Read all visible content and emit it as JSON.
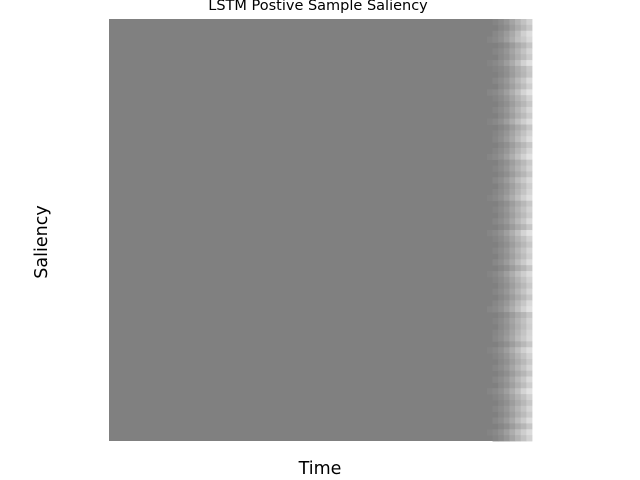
{
  "chart_data": {
    "type": "heatmap",
    "title": "LSTM Postive Sample Saliency",
    "xlabel": "Time",
    "ylabel": "Saliency",
    "grid": false,
    "axis_ticks": false,
    "colormap": "grayscale (mid gray = baseline, lighter = higher saliency)",
    "baseline_color": "#808080",
    "highlight_color": "#e6e6e6",
    "n_rows": 72,
    "n_cols": 75,
    "value_range": [
      0,
      1
    ],
    "description_of_values": "Saliency is near zero across nearly all time steps; light cells appear only in the final ~8 time steps, strongest at the last columns.",
    "columns": [
      {
        "col": 67,
        "row_values": [
          0.0,
          0.0,
          0.0,
          0.05,
          0.0,
          0.0,
          0.0,
          0.04,
          0.0,
          0.0,
          0.0,
          0.0,
          0.06,
          0.0,
          0.0,
          0.0,
          0.0,
          0.04,
          0.0,
          0.0,
          0.0,
          0.0,
          0.0,
          0.05,
          0.0,
          0.0,
          0.0,
          0.0,
          0.0,
          0.0,
          0.04,
          0.0,
          0.0,
          0.0,
          0.0,
          0.0,
          0.05,
          0.0,
          0.0,
          0.0,
          0.0,
          0.0,
          0.0,
          0.04,
          0.0,
          0.0,
          0.0,
          0.0,
          0.0,
          0.06,
          0.0,
          0.0,
          0.0,
          0.0,
          0.0,
          0.0,
          0.04,
          0.0,
          0.0,
          0.0,
          0.0,
          0.0,
          0.0,
          0.05,
          0.0,
          0.0,
          0.0,
          0.0,
          0.0,
          0.0,
          0.04,
          0.0
        ]
      },
      {
        "col": 68,
        "row_values": [
          0.05,
          0.0,
          0.08,
          0.1,
          0.0,
          0.06,
          0.0,
          0.09,
          0.04,
          0.0,
          0.07,
          0.0,
          0.1,
          0.05,
          0.0,
          0.06,
          0.0,
          0.09,
          0.0,
          0.05,
          0.07,
          0.0,
          0.06,
          0.1,
          0.0,
          0.05,
          0.0,
          0.08,
          0.0,
          0.06,
          0.09,
          0.0,
          0.05,
          0.0,
          0.07,
          0.0,
          0.1,
          0.05,
          0.0,
          0.06,
          0.0,
          0.08,
          0.0,
          0.09,
          0.05,
          0.0,
          0.06,
          0.0,
          0.07,
          0.1,
          0.0,
          0.05,
          0.0,
          0.06,
          0.08,
          0.0,
          0.09,
          0.05,
          0.0,
          0.06,
          0.0,
          0.07,
          0.0,
          0.1,
          0.05,
          0.0,
          0.06,
          0.0,
          0.08,
          0.0,
          0.09,
          0.05
        ]
      },
      {
        "col": 69,
        "row_values": [
          0.12,
          0.08,
          0.15,
          0.18,
          0.06,
          0.12,
          0.1,
          0.16,
          0.09,
          0.07,
          0.14,
          0.1,
          0.18,
          0.12,
          0.08,
          0.13,
          0.09,
          0.17,
          0.07,
          0.12,
          0.15,
          0.08,
          0.13,
          0.18,
          0.09,
          0.12,
          0.07,
          0.15,
          0.1,
          0.13,
          0.17,
          0.08,
          0.12,
          0.09,
          0.14,
          0.07,
          0.18,
          0.12,
          0.08,
          0.13,
          0.1,
          0.15,
          0.07,
          0.17,
          0.12,
          0.09,
          0.13,
          0.08,
          0.14,
          0.18,
          0.07,
          0.12,
          0.1,
          0.13,
          0.15,
          0.08,
          0.17,
          0.12,
          0.09,
          0.13,
          0.07,
          0.14,
          0.1,
          0.18,
          0.12,
          0.08,
          0.13,
          0.09,
          0.15,
          0.07,
          0.17,
          0.12
        ]
      },
      {
        "col": 70,
        "row_values": [
          0.22,
          0.15,
          0.26,
          0.3,
          0.14,
          0.22,
          0.18,
          0.28,
          0.17,
          0.15,
          0.24,
          0.19,
          0.3,
          0.22,
          0.16,
          0.23,
          0.18,
          0.29,
          0.15,
          0.22,
          0.26,
          0.16,
          0.23,
          0.3,
          0.17,
          0.22,
          0.15,
          0.26,
          0.19,
          0.23,
          0.29,
          0.16,
          0.22,
          0.18,
          0.24,
          0.15,
          0.3,
          0.22,
          0.16,
          0.23,
          0.19,
          0.26,
          0.15,
          0.29,
          0.22,
          0.17,
          0.23,
          0.16,
          0.24,
          0.3,
          0.15,
          0.22,
          0.19,
          0.23,
          0.26,
          0.16,
          0.29,
          0.22,
          0.17,
          0.23,
          0.15,
          0.24,
          0.19,
          0.3,
          0.22,
          0.16,
          0.23,
          0.18,
          0.26,
          0.15,
          0.29,
          0.22
        ]
      },
      {
        "col": 71,
        "row_values": [
          0.35,
          0.28,
          0.4,
          0.45,
          0.26,
          0.35,
          0.3,
          0.42,
          0.29,
          0.27,
          0.38,
          0.31,
          0.45,
          0.35,
          0.28,
          0.36,
          0.3,
          0.44,
          0.27,
          0.35,
          0.4,
          0.28,
          0.36,
          0.45,
          0.29,
          0.35,
          0.27,
          0.4,
          0.31,
          0.36,
          0.44,
          0.28,
          0.35,
          0.3,
          0.38,
          0.27,
          0.45,
          0.35,
          0.28,
          0.36,
          0.31,
          0.4,
          0.27,
          0.44,
          0.35,
          0.29,
          0.36,
          0.28,
          0.38,
          0.45,
          0.27,
          0.35,
          0.31,
          0.36,
          0.4,
          0.28,
          0.44,
          0.35,
          0.29,
          0.36,
          0.27,
          0.38,
          0.31,
          0.45,
          0.35,
          0.28,
          0.36,
          0.3,
          0.4,
          0.27,
          0.44,
          0.35
        ]
      },
      {
        "col": 72,
        "row_values": [
          0.5,
          0.42,
          0.58,
          0.62,
          0.4,
          0.5,
          0.45,
          0.6,
          0.43,
          0.41,
          0.55,
          0.46,
          0.62,
          0.5,
          0.42,
          0.52,
          0.45,
          0.61,
          0.41,
          0.5,
          0.58,
          0.42,
          0.52,
          0.62,
          0.43,
          0.5,
          0.41,
          0.58,
          0.46,
          0.52,
          0.61,
          0.42,
          0.5,
          0.45,
          0.55,
          0.41,
          0.62,
          0.5,
          0.42,
          0.52,
          0.46,
          0.58,
          0.41,
          0.61,
          0.5,
          0.43,
          0.52,
          0.42,
          0.55,
          0.62,
          0.41,
          0.5,
          0.46,
          0.52,
          0.58,
          0.42,
          0.61,
          0.5,
          0.43,
          0.52,
          0.41,
          0.55,
          0.46,
          0.62,
          0.5,
          0.42,
          0.52,
          0.45,
          0.58,
          0.41,
          0.61,
          0.5
        ]
      },
      {
        "col": 73,
        "row_values": [
          0.65,
          0.55,
          0.78,
          0.72,
          0.52,
          0.66,
          0.58,
          0.8,
          0.56,
          0.53,
          0.7,
          0.6,
          0.82,
          0.64,
          0.54,
          0.68,
          0.58,
          0.76,
          0.53,
          0.65,
          0.74,
          0.55,
          0.67,
          0.8,
          0.56,
          0.64,
          0.53,
          0.72,
          0.6,
          0.67,
          0.78,
          0.55,
          0.65,
          0.58,
          0.7,
          0.53,
          0.82,
          0.64,
          0.55,
          0.67,
          0.6,
          0.74,
          0.53,
          0.76,
          0.65,
          0.56,
          0.67,
          0.55,
          0.7,
          0.8,
          0.53,
          0.64,
          0.6,
          0.67,
          0.72,
          0.55,
          0.78,
          0.65,
          0.56,
          0.67,
          0.53,
          0.7,
          0.6,
          0.82,
          0.64,
          0.55,
          0.67,
          0.58,
          0.74,
          0.53,
          0.76,
          0.65
        ]
      },
      {
        "col": 74,
        "row_values": [
          0.8,
          0.7,
          0.92,
          0.86,
          0.68,
          0.82,
          0.74,
          0.95,
          0.72,
          0.69,
          0.88,
          0.76,
          0.96,
          0.8,
          0.7,
          0.84,
          0.74,
          0.9,
          0.69,
          0.8,
          0.9,
          0.7,
          0.83,
          0.95,
          0.72,
          0.8,
          0.69,
          0.86,
          0.76,
          0.83,
          0.92,
          0.7,
          0.8,
          0.74,
          0.88,
          0.69,
          0.96,
          0.8,
          0.7,
          0.83,
          0.76,
          0.9,
          0.69,
          0.9,
          0.8,
          0.72,
          0.83,
          0.7,
          0.88,
          0.95,
          0.69,
          0.8,
          0.76,
          0.83,
          0.86,
          0.7,
          0.92,
          0.8,
          0.72,
          0.83,
          0.69,
          0.88,
          0.76,
          0.96,
          0.8,
          0.7,
          0.83,
          0.74,
          0.9,
          0.69,
          0.9,
          0.8
        ]
      }
    ]
  }
}
